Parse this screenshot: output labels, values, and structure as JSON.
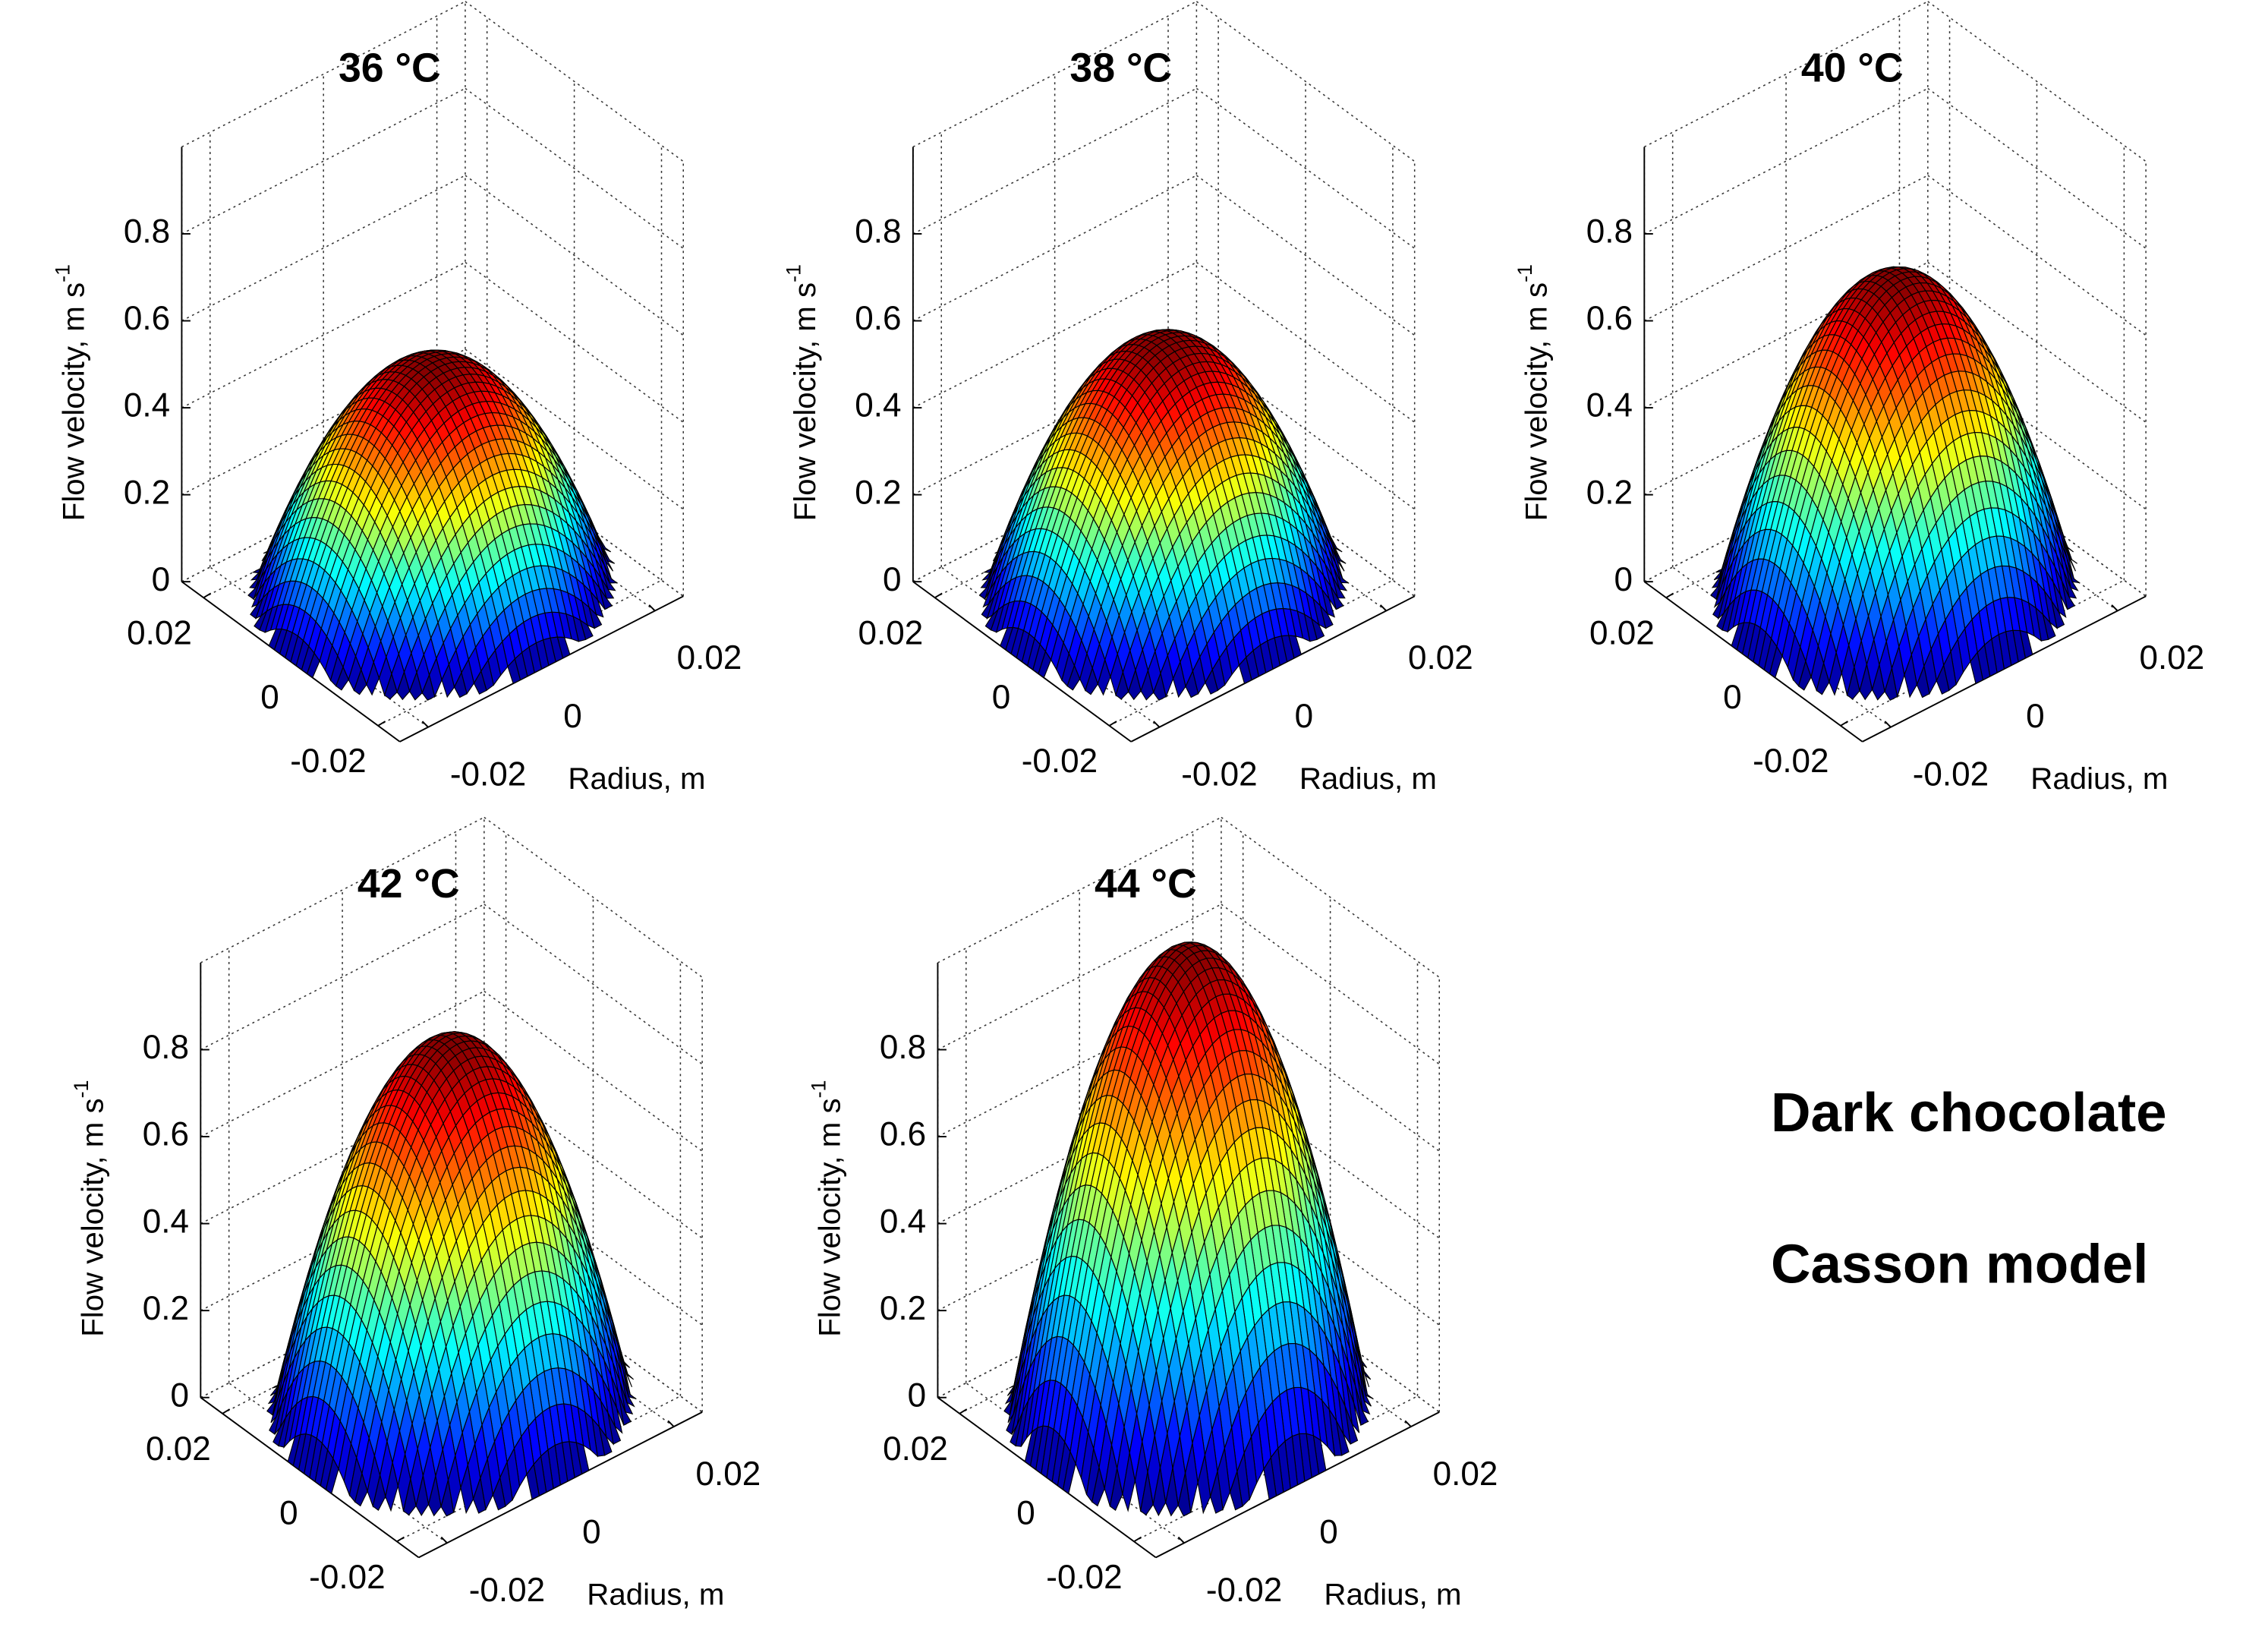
{
  "chart_data": [
    {
      "type": "surface",
      "title": "36 °C",
      "zlabel": "Flow velocity, m s",
      "zlabel_exponent": "-1",
      "xlabel": "Radius, m",
      "peak": 0.52,
      "xlim": [
        -0.025,
        0.025
      ],
      "ylim": [
        -0.025,
        0.025
      ],
      "zlim": [
        0,
        1
      ],
      "xticks": [
        -0.02,
        0,
        0.02
      ],
      "yticks": [
        -0.02,
        0,
        0.02
      ],
      "zticks": [
        0,
        0.2,
        0.4,
        0.6,
        0.8
      ],
      "grid": true,
      "colormap": "jet"
    },
    {
      "type": "surface",
      "title": "38 °C",
      "zlabel": "Flow velocity, m s",
      "zlabel_exponent": "-1",
      "xlabel": "Radius, m",
      "peak": 0.57,
      "xlim": [
        -0.025,
        0.025
      ],
      "ylim": [
        -0.025,
        0.025
      ],
      "zlim": [
        0,
        1
      ],
      "xticks": [
        -0.02,
        0,
        0.02
      ],
      "yticks": [
        -0.02,
        0,
        0.02
      ],
      "zticks": [
        0,
        0.2,
        0.4,
        0.6,
        0.8
      ],
      "grid": true,
      "colormap": "jet"
    },
    {
      "type": "surface",
      "title": "40 °C",
      "zlabel": "Flow velocity, m s",
      "zlabel_exponent": "-1",
      "xlabel": "Radius, m",
      "peak": 0.72,
      "xlim": [
        -0.025,
        0.025
      ],
      "ylim": [
        -0.025,
        0.025
      ],
      "zlim": [
        0,
        1
      ],
      "xticks": [
        -0.02,
        0,
        0.02
      ],
      "yticks": [
        -0.02,
        0,
        0.02
      ],
      "zticks": [
        0,
        0.2,
        0.4,
        0.6,
        0.8
      ],
      "grid": true,
      "colormap": "jet"
    },
    {
      "type": "surface",
      "title": "42 °C",
      "zlabel": "Flow velocity, m s",
      "zlabel_exponent": "-1",
      "xlabel": "Radius, m",
      "peak": 0.84,
      "xlim": [
        -0.025,
        0.025
      ],
      "ylim": [
        -0.025,
        0.025
      ],
      "zlim": [
        0,
        1
      ],
      "xticks": [
        -0.02,
        0,
        0.02
      ],
      "yticks": [
        -0.02,
        0,
        0.02
      ],
      "zticks": [
        0,
        0.2,
        0.4,
        0.6,
        0.8
      ],
      "grid": true,
      "colormap": "jet"
    },
    {
      "type": "surface",
      "title": "44 °C",
      "zlabel": "Flow velocity, m s",
      "zlabel_exponent": "-1",
      "xlabel": "Radius, m",
      "peak": 1.05,
      "xlim": [
        -0.025,
        0.025
      ],
      "ylim": [
        -0.025,
        0.025
      ],
      "zlim": [
        0,
        1
      ],
      "xticks": [
        -0.02,
        0,
        0.02
      ],
      "yticks": [
        -0.02,
        0,
        0.02
      ],
      "zticks": [
        0,
        0.2,
        0.4,
        0.6,
        0.8
      ],
      "grid": true,
      "colormap": "jet"
    }
  ],
  "annotations": [
    "Dark chocolate",
    "Casson model"
  ]
}
